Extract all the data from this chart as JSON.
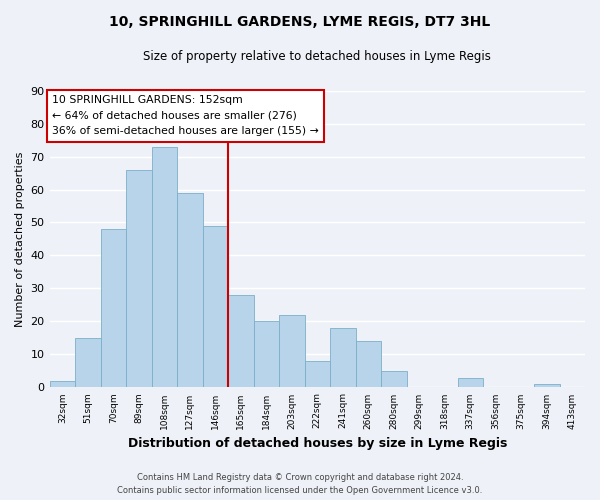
{
  "title": "10, SPRINGHILL GARDENS, LYME REGIS, DT7 3HL",
  "subtitle": "Size of property relative to detached houses in Lyme Regis",
  "xlabel": "Distribution of detached houses by size in Lyme Regis",
  "ylabel": "Number of detached properties",
  "categories": [
    "32sqm",
    "51sqm",
    "70sqm",
    "89sqm",
    "108sqm",
    "127sqm",
    "146sqm",
    "165sqm",
    "184sqm",
    "203sqm",
    "222sqm",
    "241sqm",
    "260sqm",
    "280sqm",
    "299sqm",
    "318sqm",
    "337sqm",
    "356sqm",
    "375sqm",
    "394sqm",
    "413sqm"
  ],
  "values": [
    2,
    15,
    48,
    66,
    73,
    59,
    49,
    28,
    20,
    22,
    8,
    18,
    14,
    5,
    0,
    0,
    3,
    0,
    0,
    1,
    0
  ],
  "bar_color": "#b8d4ea",
  "bar_edge_color": "#7aafc8",
  "vline_color": "#cc0000",
  "vline_x_index": 6.5,
  "annotation_box_facecolor": "#ffffff",
  "annotation_box_edgecolor": "#cc0000",
  "annotation_line1": "10 SPRINGHILL GARDENS: 152sqm",
  "annotation_line2": "← 64% of detached houses are smaller (276)",
  "annotation_line3": "36% of semi-detached houses are larger (155) →",
  "ylim": [
    0,
    90
  ],
  "yticks": [
    0,
    10,
    20,
    30,
    40,
    50,
    60,
    70,
    80,
    90
  ],
  "footer_line1": "Contains HM Land Registry data © Crown copyright and database right 2024.",
  "footer_line2": "Contains public sector information licensed under the Open Government Licence v3.0.",
  "bg_color": "#eef2f8",
  "grid_color": "#ffffff"
}
